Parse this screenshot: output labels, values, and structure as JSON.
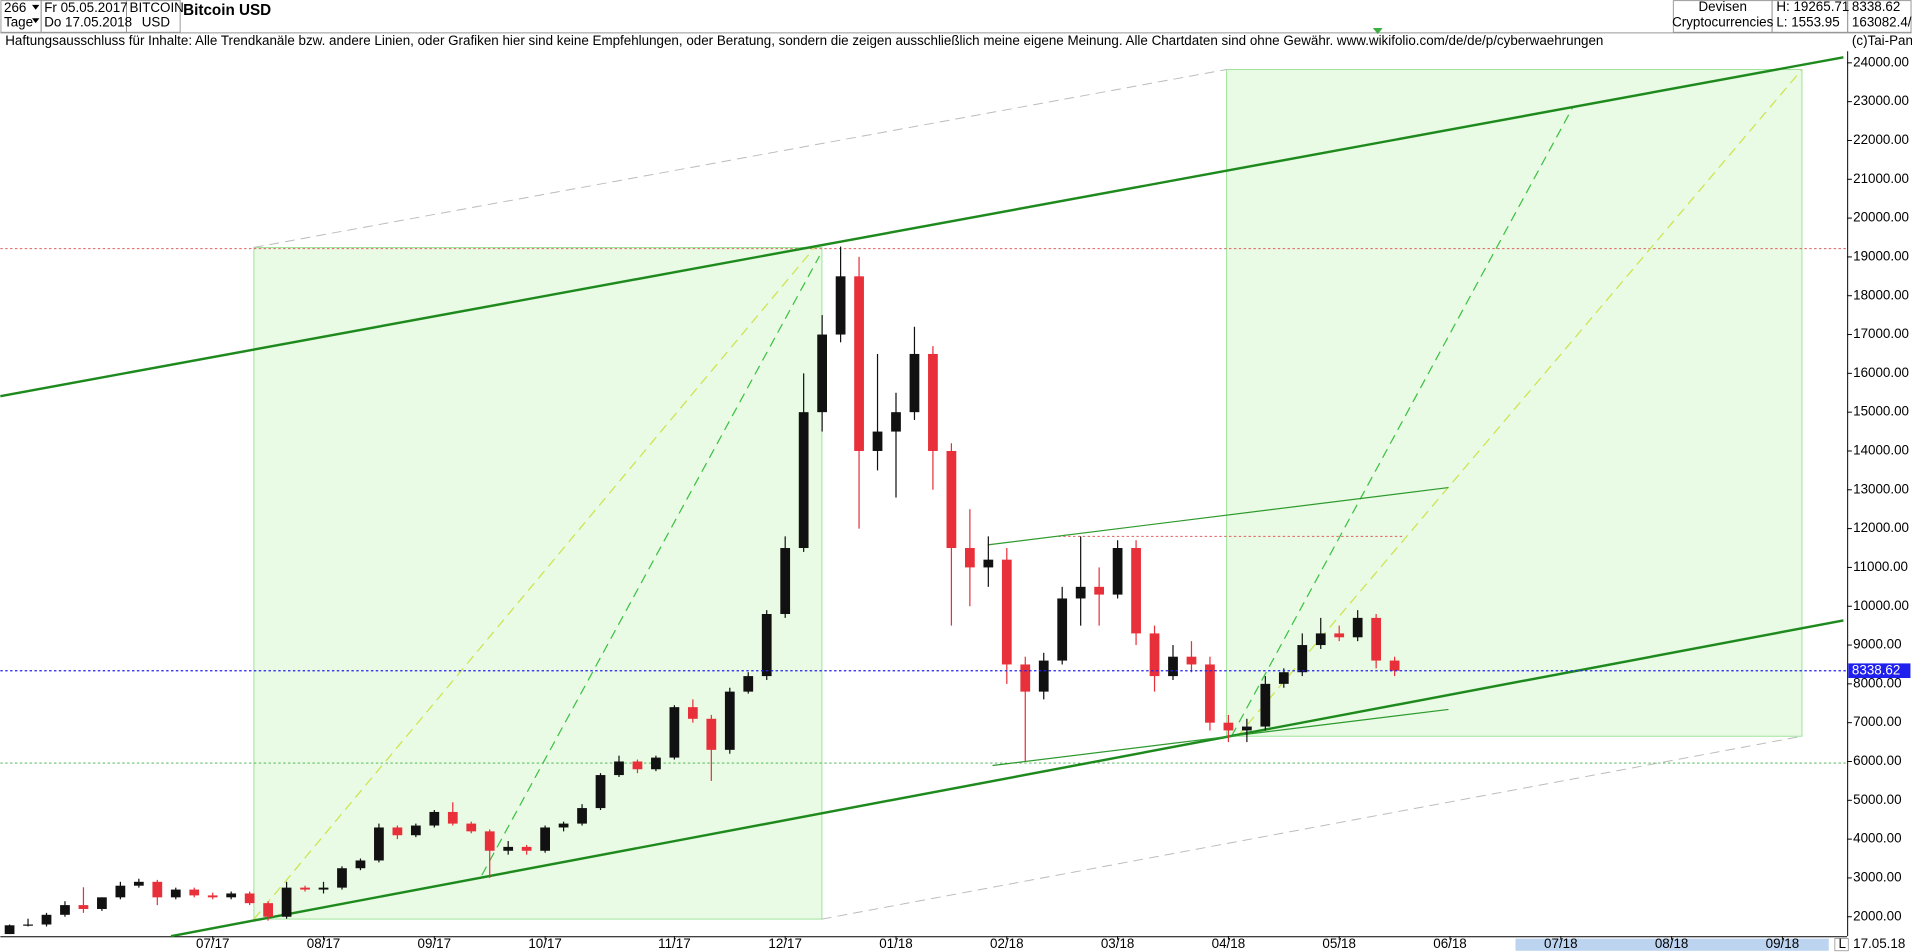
{
  "chart_data": {
    "type": "candlestick",
    "title": "Bitcoin USD",
    "header": {
      "count": "266",
      "unit": "Tage",
      "from": "Fr 05.05.2017",
      "to": "Do 17.05.2018",
      "symbol": "BITCOIN",
      "currency": "USD",
      "group": "Devisen",
      "subgroup": "Cryptocurrencies",
      "high": "H: 19265.71",
      "low": "L: 1553.95",
      "last": "8338.62",
      "volume": "163082.4/"
    },
    "disclaimer": "Haftungsausschluss für Inhalte: Alle Trendkanäle bzw. andere Linien, oder Grafiken hier sind keine Empfehlungen, oder Beratung, sondern die zeigen ausschließlich meine eigene Meinung. Alle Chartdaten sind ohne Gewähr.  www.wikifolio.com/de/de/p/cyberwaehrungen",
    "copyright": "(c)Tai-Pan",
    "footer": {
      "scale": "L",
      "date": "17.05.18"
    },
    "up_color": "#111111",
    "down_color": "#e8303a",
    "last_price": 8338.62,
    "last_price_color": "#2020ee",
    "categories": [
      null,
      null,
      null,
      null,
      null,
      null,
      null,
      null,
      null,
      null,
      null,
      "07/17",
      null,
      null,
      null,
      null,
      null,
      "08/17",
      null,
      null,
      null,
      null,
      null,
      "09/17",
      null,
      null,
      null,
      null,
      null,
      "10/17",
      null,
      null,
      null,
      null,
      null,
      null,
      "11/17",
      null,
      null,
      null,
      null,
      null,
      "12/17",
      null,
      null,
      null,
      null,
      null,
      "01/18",
      null,
      null,
      null,
      null,
      null,
      "02/18",
      null,
      null,
      null,
      null,
      null,
      "03/18",
      null,
      null,
      null,
      null,
      null,
      "04/18",
      null,
      null,
      null,
      null,
      null,
      "05/18",
      null,
      null,
      null,
      null,
      null,
      "06/18",
      null,
      null,
      null,
      null,
      null,
      "07/18",
      null,
      null,
      null,
      null,
      null,
      "08/18",
      null,
      null,
      null,
      null,
      null,
      "09/18",
      null,
      null,
      null
    ],
    "open": [
      1554,
      1780,
      1800,
      2050,
      2300,
      2200,
      2500,
      2800,
      2900,
      2500,
      2700,
      2550,
      2500,
      2600,
      2350,
      2000,
      2750,
      2700,
      2750,
      3250,
      3450,
      4300,
      4100,
      4350,
      4700,
      4400,
      4200,
      3700,
      3800,
      3700,
      4300,
      4400,
      4800,
      5650,
      6000,
      5800,
      6100,
      7400,
      7100,
      6300,
      7800,
      8200,
      9800,
      11500,
      15000,
      17000,
      18500,
      14000,
      14500,
      15000,
      16500,
      14000,
      11500,
      11000,
      11200,
      8500,
      7800,
      8600,
      10200,
      10500,
      10300,
      11500,
      9300,
      8200,
      8700,
      8500,
      7000,
      6800,
      6900,
      8000,
      8300,
      9000,
      9300,
      9200,
      9700,
      8600,
      null,
      null,
      null,
      null,
      null,
      null,
      null,
      null,
      null,
      null,
      null,
      null,
      null,
      null,
      null,
      null,
      null,
      null,
      null,
      null,
      null,
      null,
      null,
      null
    ],
    "high": [
      1800,
      1950,
      2100,
      2400,
      2760,
      2500,
      2900,
      2980,
      2950,
      2750,
      2750,
      2620,
      2650,
      2650,
      2400,
      2900,
      2800,
      2900,
      3300,
      3500,
      4400,
      4350,
      4400,
      4750,
      4950,
      4450,
      4250,
      3950,
      3850,
      4350,
      4450,
      4900,
      5700,
      6150,
      6050,
      6150,
      7450,
      7600,
      7200,
      7900,
      8300,
      9900,
      11800,
      16000,
      17500,
      19265.71,
      19000,
      16500,
      15500,
      17200,
      16700,
      14200,
      12500,
      11800,
      11500,
      8700,
      8800,
      10500,
      11800,
      11000,
      11700,
      11700,
      9500,
      9000,
      9100,
      8700,
      7200,
      7100,
      8200,
      8400,
      9300,
      9700,
      9500,
      9900,
      9800,
      8700,
      null,
      null,
      null,
      null,
      null,
      null,
      null,
      null,
      null,
      null,
      null,
      null,
      null,
      null,
      null,
      null,
      null,
      null,
      null,
      null,
      null,
      null,
      null,
      null
    ],
    "low": [
      1553.95,
      1750,
      1750,
      2000,
      2100,
      2150,
      2450,
      2750,
      2300,
      2450,
      2500,
      2450,
      2450,
      2300,
      1900,
      1950,
      2650,
      2600,
      2700,
      3200,
      3400,
      4000,
      4050,
      4300,
      4350,
      4150,
      3000,
      3600,
      3600,
      3650,
      4200,
      4350,
      4750,
      5600,
      5700,
      5750,
      6050,
      7000,
      5500,
      6200,
      7750,
      8100,
      9700,
      11400,
      14500,
      16800,
      12000,
      13500,
      12800,
      14800,
      13000,
      9500,
      10000,
      10500,
      8000,
      6000,
      7600,
      8500,
      9500,
      9500,
      10200,
      9000,
      7800,
      8100,
      8300,
      6800,
      6500,
      6500,
      6800,
      7900,
      8200,
      8900,
      9100,
      9100,
      8400,
      8200,
      null,
      null,
      null,
      null,
      null,
      null,
      null,
      null,
      null,
      null,
      null,
      null,
      null,
      null,
      null,
      null,
      null,
      null,
      null,
      null,
      null,
      null,
      null,
      null
    ],
    "close": [
      1780,
      1800,
      2050,
      2300,
      2200,
      2500,
      2800,
      2900,
      2500,
      2700,
      2550,
      2500,
      2600,
      2350,
      2000,
      2750,
      2700,
      2750,
      3250,
      3450,
      4300,
      4100,
      4350,
      4700,
      4400,
      4200,
      3700,
      3800,
      3700,
      4300,
      4400,
      4800,
      5650,
      6000,
      5800,
      6100,
      7400,
      7100,
      6300,
      7800,
      8200,
      9800,
      11500,
      15000,
      17000,
      18500,
      14000,
      14500,
      15000,
      16500,
      14000,
      11500,
      11000,
      11200,
      8500,
      7800,
      8600,
      10200,
      10500,
      10300,
      11500,
      9300,
      8200,
      8700,
      8500,
      7000,
      6800,
      6900,
      8000,
      8300,
      9000,
      9300,
      9200,
      9700,
      8600,
      8338.62,
      null,
      null,
      null,
      null,
      null,
      null,
      null,
      null,
      null,
      null,
      null,
      null,
      null,
      null,
      null,
      null,
      null,
      null,
      null,
      null,
      null,
      null,
      null,
      null
    ],
    "ylim": [
      1500,
      24300
    ],
    "yticks": [
      {
        "value": 2000,
        "label": "2000.00"
      },
      {
        "value": 3000,
        "label": "3000.00"
      },
      {
        "value": 4000,
        "label": "4000.00"
      },
      {
        "value": 5000,
        "label": "5000.00"
      },
      {
        "value": 6000,
        "label": "6000.00"
      },
      {
        "value": 7000,
        "label": "7000.00"
      },
      {
        "value": 8000,
        "label": "8000.00"
      },
      {
        "value": 9000,
        "label": "9000.00"
      },
      {
        "value": 10000,
        "label": "10000.00"
      },
      {
        "value": 11000,
        "label": "11000.00"
      },
      {
        "value": 12000,
        "label": "12000.00"
      },
      {
        "value": 13000,
        "label": "13000.00"
      },
      {
        "value": 14000,
        "label": "14000.00"
      },
      {
        "value": 15000,
        "label": "15000.00"
      },
      {
        "value": 16000,
        "label": "16000.00"
      },
      {
        "value": 17000,
        "label": "17000.00"
      },
      {
        "value": 18000,
        "label": "18000.00"
      },
      {
        "value": 19000,
        "label": "19000.00"
      },
      {
        "value": 20000,
        "label": "20000.00"
      },
      {
        "value": 21000,
        "label": "21000.00"
      },
      {
        "value": 22000,
        "label": "22000.00"
      },
      {
        "value": 23000,
        "label": "23000.00"
      },
      {
        "value": 24000,
        "label": "24000.00"
      }
    ]
  }
}
